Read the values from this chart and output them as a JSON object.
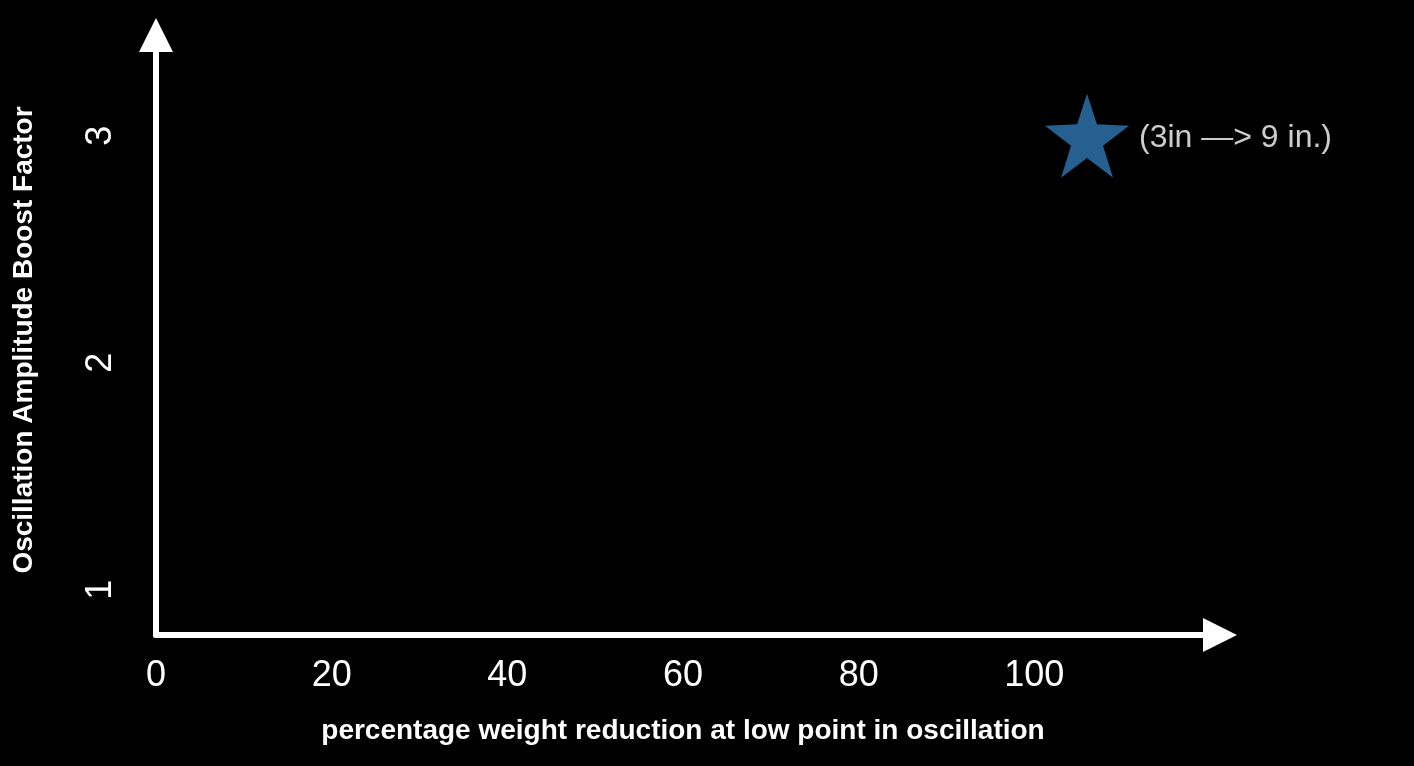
{
  "chart_data": {
    "type": "scatter",
    "xlabel": "percentage weight reduction at low point in oscillation",
    "ylabel": "Oscillation Amplitude Boost Factor",
    "x": [
      106
    ],
    "series": [
      {
        "color": "#2e78b5",
        "values": [
          3
        ]
      }
    ],
    "annotations": [
      {
        "text": "(3in —> 9 in.)",
        "x": 106,
        "y": 3
      }
    ],
    "xlim": [
      0,
      120
    ],
    "xticks": [
      0,
      20,
      40,
      60,
      80,
      100
    ],
    "ylim": [
      0.8,
      3.4
    ],
    "yticks": [
      1,
      2,
      3
    ],
    "marker": "star",
    "grid": false
  }
}
